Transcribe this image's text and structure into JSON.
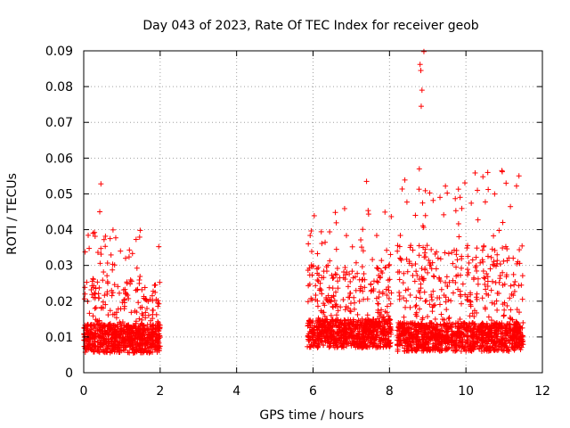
{
  "chart_data": {
    "type": "scatter",
    "title": "Day 043 of 2023, Rate Of TEC Index for receiver geob",
    "xlabel": "GPS time / hours",
    "ylabel": "ROTI / TECUs",
    "xlim": [
      0,
      12
    ],
    "ylim": [
      0,
      0.09
    ],
    "x_ticks": [
      "0",
      "2",
      "4",
      "6",
      "8",
      "10",
      "12"
    ],
    "y_ticks": [
      "0",
      "0.01",
      "0.02",
      "0.03",
      "0.04",
      "0.05",
      "0.06",
      "0.07",
      "0.08",
      "0.09"
    ],
    "grid": true,
    "marker": "+",
    "color": "#ff0000",
    "series": [
      {
        "name": "ROTI",
        "segments": [
          {
            "x_start": 0.0,
            "x_end": 2.0,
            "base": 0.0095,
            "spread": 0.004,
            "peak": 0.04
          },
          {
            "x_start": 5.85,
            "x_end": 8.05,
            "base": 0.011,
            "spread": 0.004,
            "peak": 0.046
          },
          {
            "x_start": 8.2,
            "x_end": 11.5,
            "base": 0.01,
            "spread": 0.004,
            "peak": 0.057
          }
        ],
        "notable_points": [
          {
            "x": 0.03,
            "y": 0.009
          },
          {
            "x": 0.45,
            "y": 0.0528
          },
          {
            "x": 0.42,
            "y": 0.045
          },
          {
            "x": 7.4,
            "y": 0.0535
          },
          {
            "x": 8.8,
            "y": 0.0862
          },
          {
            "x": 8.82,
            "y": 0.0845
          },
          {
            "x": 8.9,
            "y": 0.0898
          },
          {
            "x": 8.85,
            "y": 0.079
          },
          {
            "x": 8.83,
            "y": 0.0745
          },
          {
            "x": 8.78,
            "y": 0.057
          },
          {
            "x": 10.3,
            "y": 0.051
          },
          {
            "x": 10.95,
            "y": 0.0562
          },
          {
            "x": 11.05,
            "y": 0.053
          }
        ]
      }
    ]
  }
}
